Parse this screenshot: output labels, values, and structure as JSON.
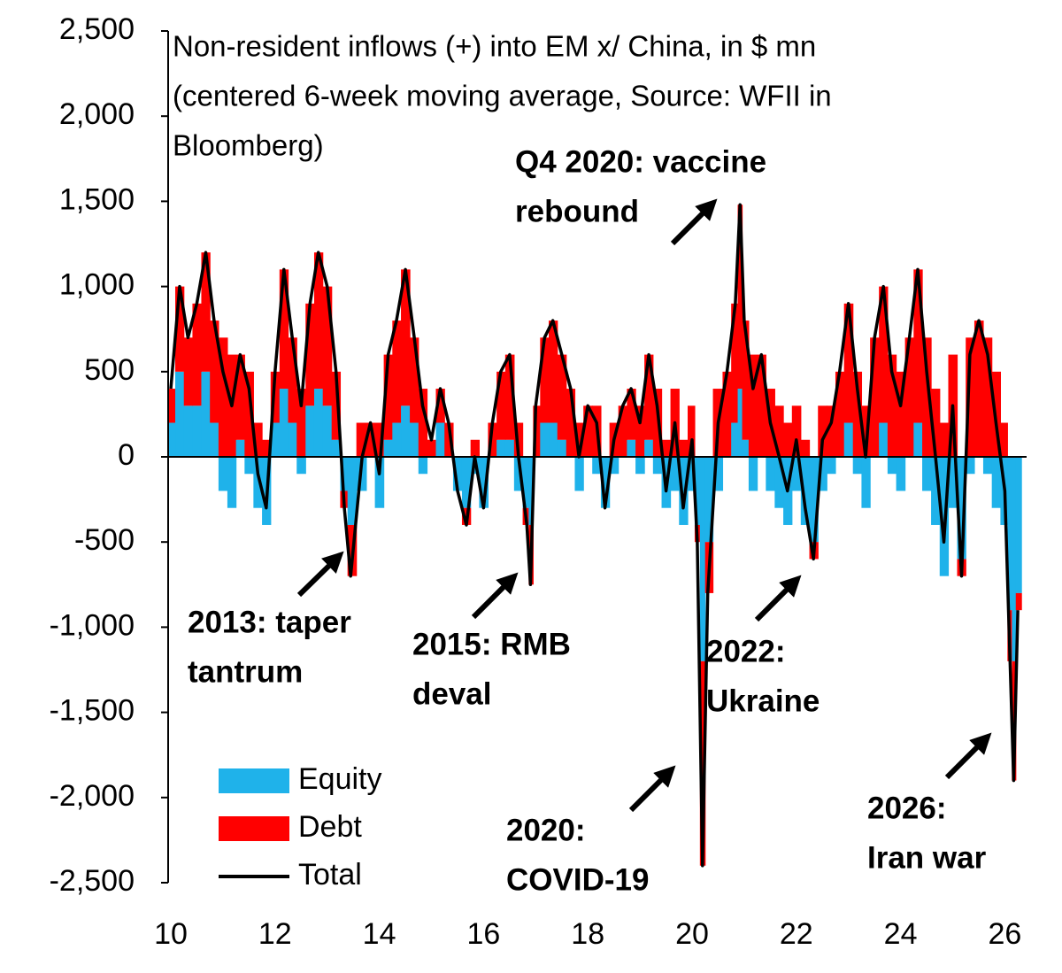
{
  "chart_data": {
    "type": "stacked-bar-line",
    "title": [
      "Non-resident inflows (+) into EM x/ China, in $ mn",
      "(centered 6-week moving average, Source: WFII in",
      "Bloomberg)"
    ],
    "x": [
      10.0,
      10.17,
      10.33,
      10.5,
      10.67,
      10.83,
      11.0,
      11.17,
      11.33,
      11.5,
      11.67,
      11.83,
      12.0,
      12.17,
      12.33,
      12.5,
      12.67,
      12.83,
      13.0,
      13.17,
      13.33,
      13.45,
      13.67,
      13.83,
      14.0,
      14.17,
      14.33,
      14.5,
      14.67,
      14.83,
      15.0,
      15.17,
      15.33,
      15.5,
      15.67,
      15.83,
      16.0,
      16.17,
      16.33,
      16.5,
      16.67,
      16.83,
      16.9,
      17.0,
      17.17,
      17.33,
      17.5,
      17.67,
      17.83,
      18.0,
      18.17,
      18.33,
      18.5,
      18.67,
      18.83,
      19.0,
      19.17,
      19.33,
      19.5,
      19.67,
      19.83,
      20.0,
      20.1,
      20.2,
      20.3,
      20.5,
      20.67,
      20.83,
      20.92,
      21.0,
      21.17,
      21.33,
      21.5,
      21.67,
      21.83,
      22.0,
      22.17,
      22.33,
      22.5,
      22.67,
      22.83,
      23.0,
      23.17,
      23.33,
      23.5,
      23.67,
      23.83,
      24.0,
      24.17,
      24.33,
      24.5,
      24.67,
      24.83,
      25.0,
      25.17,
      25.33,
      25.5,
      25.67,
      25.83,
      26.0,
      26.1,
      26.17,
      26.25
    ],
    "series": [
      {
        "name": "Equity",
        "color": "#1fb2ea",
        "values": [
          200,
          500,
          300,
          300,
          500,
          200,
          -200,
          -300,
          100,
          -100,
          -300,
          -400,
          200,
          400,
          200,
          -100,
          300,
          400,
          300,
          100,
          -200,
          -400,
          -200,
          0,
          -300,
          100,
          200,
          300,
          200,
          -100,
          0,
          200,
          0,
          -200,
          -300,
          -100,
          -300,
          0,
          100,
          100,
          -200,
          -300,
          -400,
          0,
          200,
          200,
          100,
          0,
          -200,
          0,
          -100,
          -300,
          -100,
          0,
          100,
          -100,
          100,
          -100,
          -300,
          -200,
          -400,
          -200,
          -400,
          -1200,
          -500,
          -200,
          0,
          200,
          400,
          100,
          -200,
          0,
          -200,
          -300,
          -400,
          -200,
          -400,
          -500,
          -200,
          -100,
          0,
          200,
          -100,
          -300,
          0,
          200,
          -100,
          -200,
          0,
          200,
          -200,
          -400,
          -700,
          -300,
          -600,
          -100,
          0,
          -100,
          -300,
          -400,
          -900,
          -1200,
          -800
        ]
      },
      {
        "name": "Debt",
        "color": "#ff0000",
        "values": [
          200,
          500,
          400,
          600,
          700,
          600,
          700,
          600,
          500,
          500,
          200,
          100,
          300,
          700,
          500,
          400,
          600,
          800,
          700,
          400,
          -100,
          -300,
          200,
          200,
          200,
          500,
          600,
          800,
          500,
          400,
          100,
          200,
          200,
          0,
          -100,
          100,
          0,
          200,
          400,
          500,
          200,
          -100,
          -350,
          300,
          500,
          600,
          500,
          400,
          200,
          300,
          300,
          0,
          200,
          300,
          300,
          300,
          500,
          400,
          100,
          400,
          100,
          300,
          -100,
          -1200,
          -300,
          400,
          500,
          700,
          1080,
          700,
          600,
          600,
          400,
          300,
          200,
          300,
          100,
          -100,
          300,
          300,
          500,
          700,
          500,
          300,
          700,
          800,
          600,
          500,
          700,
          900,
          700,
          400,
          200,
          600,
          -100,
          700,
          800,
          700,
          500,
          200,
          -300,
          -700,
          -100
        ]
      },
      {
        "name": "Total",
        "color": "#000000",
        "values": [
          400,
          1000,
          700,
          900,
          1200,
          800,
          500,
          300,
          600,
          400,
          -100,
          -300,
          500,
          1100,
          700,
          300,
          900,
          1200,
          1000,
          500,
          -300,
          -700,
          0,
          200,
          -100,
          600,
          800,
          1100,
          700,
          300,
          100,
          400,
          200,
          -200,
          -400,
          0,
          -300,
          200,
          500,
          600,
          0,
          -400,
          -750,
          300,
          700,
          800,
          600,
          400,
          0,
          300,
          200,
          -300,
          100,
          300,
          400,
          200,
          600,
          300,
          -200,
          200,
          -300,
          100,
          -500,
          -2400,
          -800,
          200,
          500,
          900,
          1480,
          800,
          400,
          600,
          200,
          0,
          -200,
          100,
          -300,
          -600,
          100,
          200,
          500,
          900,
          400,
          0,
          700,
          1000,
          500,
          300,
          700,
          1100,
          500,
          0,
          -500,
          300,
          -700,
          600,
          800,
          600,
          200,
          -200,
          -1200,
          -1900,
          -900
        ]
      }
    ],
    "xlim": [
      10,
      26.4
    ],
    "xticks": [
      10,
      12,
      14,
      16,
      18,
      20,
      22,
      24,
      26
    ],
    "ylim": [
      -2500,
      2500
    ],
    "yticks": [
      {
        "value": -2500,
        "label": "-2,500"
      },
      {
        "value": -2000,
        "label": "-2,000"
      },
      {
        "value": -1500,
        "label": "-1,500"
      },
      {
        "value": -1000,
        "label": "-1,000"
      },
      {
        "value": -500,
        "label": "-500"
      },
      0,
      500,
      {
        "value": 1000,
        "label": "1,000"
      },
      {
        "value": 1500,
        "label": "1,500"
      },
      {
        "value": 2000,
        "label": "2,000"
      },
      {
        "value": 2500,
        "label": "2,500"
      }
    ],
    "grid": false,
    "legend": "lower left",
    "annotations": [
      [
        "Q4 2020: vaccine",
        "rebound"
      ],
      [
        "2013: taper",
        "tantrum"
      ],
      [
        "2015: RMB",
        "deval"
      ],
      [
        "2022:",
        "Ukraine"
      ],
      [
        "2020:",
        "COVID-19"
      ],
      [
        "2026:",
        "Iran war"
      ]
    ]
  }
}
